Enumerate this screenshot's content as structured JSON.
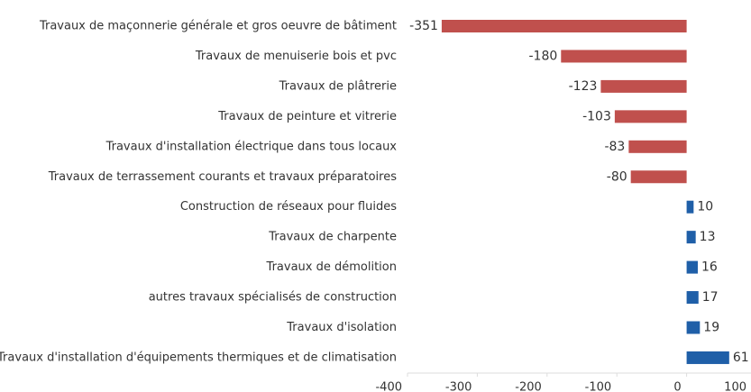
{
  "chart_data": {
    "type": "bar",
    "categories": [
      "Travaux de maçonnerie générale et gros oeuvre de bâtiment",
      "Travaux de menuiserie bois et pvc",
      "Travaux de plâtrerie",
      "Travaux de peinture et vitrerie",
      "Travaux d'installation électrique dans tous locaux",
      "Travaux de terrassement courants et travaux préparatoires",
      "Construction de réseaux pour fluides",
      "Travaux de charpente",
      "Travaux de démolition",
      "autres travaux spécialisés de construction",
      "Travaux d'isolation",
      "Travaux d'installation d'équipements thermiques et de climatisation"
    ],
    "values": [
      -351,
      -180,
      -123,
      -103,
      -83,
      -80,
      10,
      13,
      16,
      17,
      19,
      61
    ],
    "negative_color": "#c0504d",
    "positive_color": "#1f5fa8",
    "xlim": [
      -400,
      100
    ],
    "xticks": [
      -400,
      -300,
      -200,
      -100,
      0,
      100
    ]
  }
}
